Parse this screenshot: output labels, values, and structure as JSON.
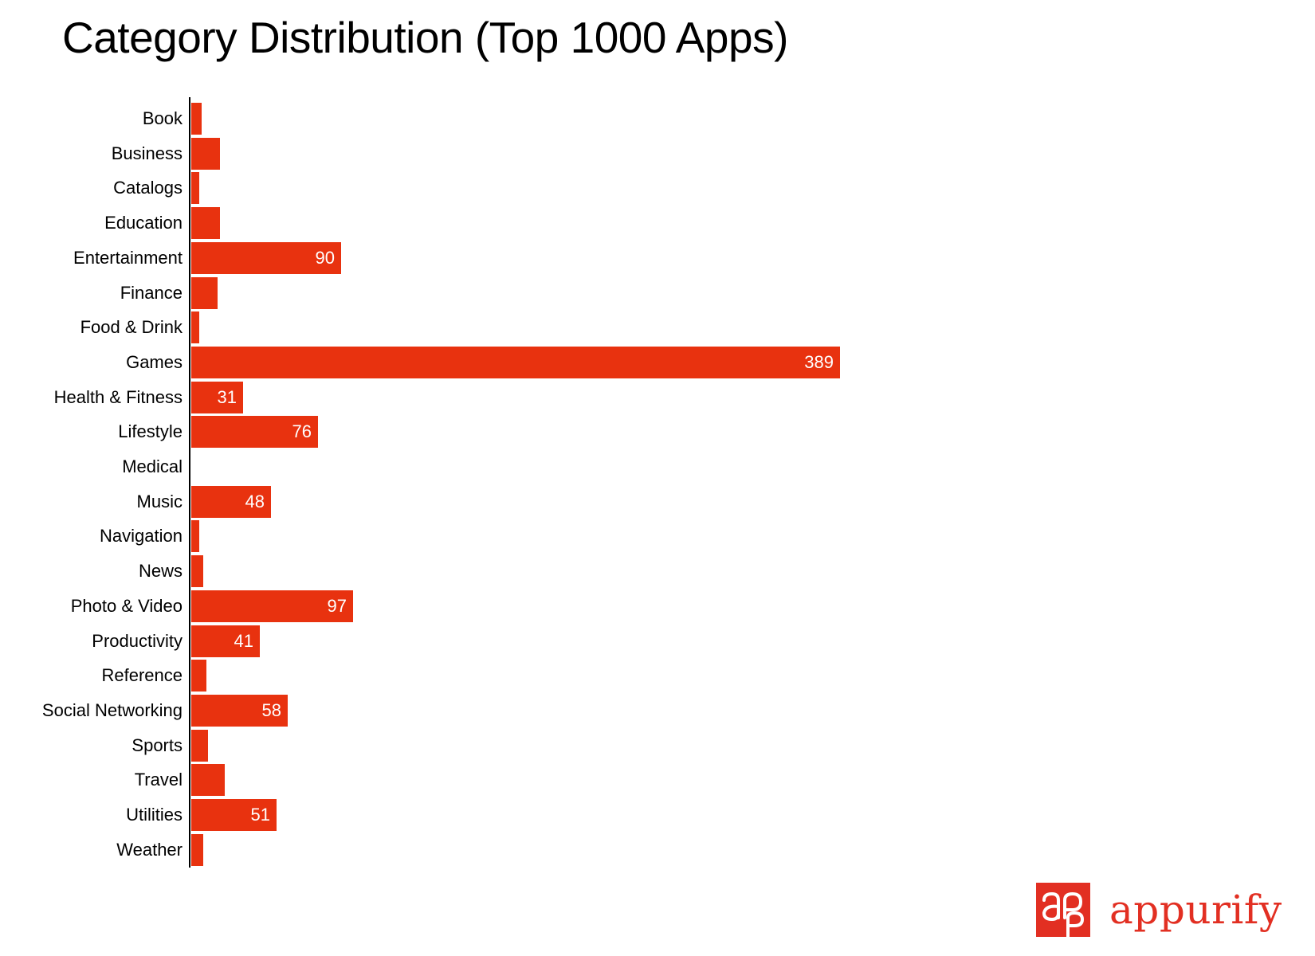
{
  "title": "Category Distribution (Top 1000 Apps)",
  "colors": {
    "bar": "#e8320f",
    "bar_label": "#ffffff",
    "axis": "#000000",
    "brand": "#e22f22"
  },
  "brand": {
    "logo_icon": "appurify-ap-monogram-icon",
    "name": "appurify"
  },
  "chart_data": {
    "type": "bar",
    "orientation": "horizontal",
    "title": "Category Distribution (Top 1000 Apps)",
    "xlabel": "",
    "ylabel": "",
    "grid": false,
    "legend": null,
    "value_axis_visible": false,
    "categories": [
      "Book",
      "Business",
      "Catalogs",
      "Education",
      "Entertainment",
      "Finance",
      "Food & Drink",
      "Games",
      "Health & Fitness",
      "Lifestyle",
      "Medical",
      "Music",
      "Navigation",
      "News",
      "Photo & Video",
      "Productivity",
      "Reference",
      "Social Networking",
      "Sports",
      "Travel",
      "Utilities",
      "Weather"
    ],
    "values": [
      6,
      17,
      5,
      17,
      90,
      16,
      5,
      389,
      31,
      76,
      0,
      48,
      5,
      7,
      97,
      41,
      9,
      58,
      10,
      20,
      51,
      7
    ],
    "data_labels": [
      "",
      "",
      "",
      "",
      "90",
      "",
      "",
      "389",
      "31",
      "76",
      "",
      "48",
      "",
      "",
      "97",
      "41",
      "",
      "58",
      "",
      "",
      "51",
      ""
    ],
    "xlim": [
      0,
      389
    ]
  }
}
